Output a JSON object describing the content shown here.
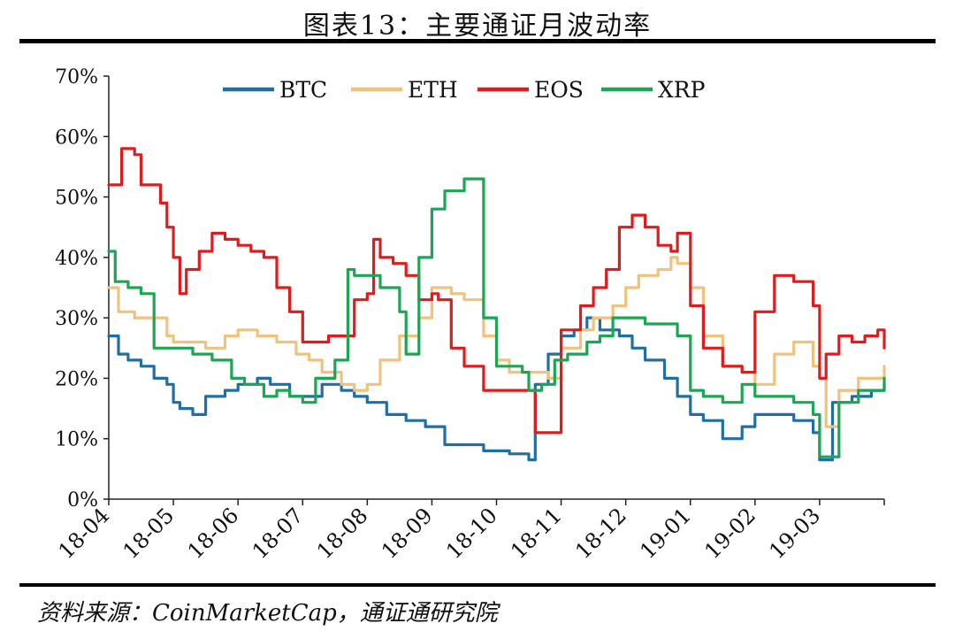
{
  "figure": {
    "title": "图表13：主要通证月波动率",
    "source": "资料来源：CoinMarketCap，通证通研究院"
  },
  "chart_data": {
    "type": "line",
    "title": "图表13：主要通证月波动率",
    "xlabel": "",
    "ylabel": "",
    "x_ticks": [
      "18-04",
      "18-05",
      "18-06",
      "18-07",
      "18-08",
      "18-09",
      "18-10",
      "18-11",
      "18-12",
      "19-01",
      "19-02",
      "19-03"
    ],
    "x_range_months": [
      0,
      12
    ],
    "ylim": [
      0,
      70
    ],
    "y_ticks": [
      0,
      10,
      20,
      30,
      40,
      50,
      60,
      70
    ],
    "y_tick_labels": [
      "0%",
      "10%",
      "20%",
      "30%",
      "40%",
      "50%",
      "60%",
      "70%"
    ],
    "grid": false,
    "legend_position": "top",
    "colors": {
      "BTC": "#1f6fa6",
      "ETH": "#f0c27b",
      "EOS": "#e11b1b",
      "XRP": "#1aa652"
    },
    "series": [
      {
        "name": "BTC",
        "x": [
          0,
          0.15,
          0.3,
          0.5,
          0.7,
          0.9,
          1.0,
          1.1,
          1.3,
          1.5,
          1.8,
          2.0,
          2.3,
          2.5,
          2.8,
          3.0,
          3.3,
          3.6,
          3.8,
          4.0,
          4.3,
          4.6,
          4.9,
          5.2,
          5.5,
          5.8,
          6.0,
          6.2,
          6.5,
          6.6,
          6.8,
          7.0,
          7.2,
          7.4,
          7.6,
          7.9,
          8.1,
          8.3,
          8.6,
          8.8,
          9.0,
          9.2,
          9.5,
          9.8,
          10.0,
          10.3,
          10.6,
          10.9,
          11.0,
          11.2,
          11.5,
          11.8,
          12.0
        ],
        "values": [
          27,
          24,
          23,
          22,
          20,
          19,
          16,
          15,
          14,
          17,
          18,
          19,
          20,
          19,
          17,
          17,
          19,
          18,
          17,
          16,
          14,
          13,
          12,
          9,
          9,
          8,
          8,
          7.5,
          6.5,
          19,
          24,
          27,
          28,
          30,
          28,
          27,
          25,
          23,
          20,
          17,
          14,
          13,
          10,
          12,
          14,
          14,
          13,
          11,
          6.5,
          16,
          17,
          18,
          19
        ]
      },
      {
        "name": "ETH",
        "x": [
          0,
          0.15,
          0.4,
          0.7,
          0.9,
          1.0,
          1.2,
          1.5,
          1.8,
          2.0,
          2.3,
          2.6,
          2.9,
          3.1,
          3.3,
          3.6,
          3.8,
          4.0,
          4.2,
          4.5,
          4.8,
          5.0,
          5.1,
          5.3,
          5.5,
          5.8,
          6.0,
          6.2,
          6.4,
          6.6,
          6.8,
          7.0,
          7.3,
          7.5,
          7.8,
          8.0,
          8.2,
          8.5,
          8.7,
          8.8,
          9.0,
          9.2,
          9.5,
          9.8,
          10.0,
          10.3,
          10.6,
          10.9,
          11.0,
          11.1,
          11.3,
          11.6,
          11.9,
          12.0
        ],
        "values": [
          35,
          31,
          30,
          30,
          27,
          26,
          26,
          25,
          27,
          28,
          27,
          26,
          24,
          23,
          21,
          19,
          18,
          19,
          23,
          27,
          30,
          35,
          35,
          34,
          33,
          27,
          23,
          21,
          21,
          21,
          20,
          25,
          28,
          30,
          32,
          35,
          37,
          38,
          40,
          39,
          35,
          27,
          22,
          21,
          19,
          24,
          26,
          22,
          20,
          12,
          18,
          20,
          20,
          22
        ]
      },
      {
        "name": "EOS",
        "x": [
          0,
          0.1,
          0.2,
          0.3,
          0.4,
          0.5,
          0.6,
          0.8,
          0.9,
          1.0,
          1.1,
          1.2,
          1.4,
          1.6,
          1.8,
          2.0,
          2.2,
          2.4,
          2.6,
          2.8,
          3.0,
          3.2,
          3.4,
          3.6,
          3.8,
          4.0,
          4.1,
          4.2,
          4.4,
          4.6,
          4.8,
          5.0,
          5.1,
          5.3,
          5.5,
          5.8,
          6.0,
          6.2,
          6.5,
          6.6,
          6.8,
          7.0,
          7.3,
          7.5,
          7.7,
          7.9,
          8.1,
          8.3,
          8.5,
          8.7,
          8.8,
          9.0,
          9.2,
          9.5,
          9.8,
          10.0,
          10.3,
          10.6,
          10.9,
          11.0,
          11.1,
          11.3,
          11.5,
          11.7,
          11.9,
          12.0
        ],
        "values": [
          52,
          52,
          58,
          58,
          57,
          52,
          52,
          49,
          45,
          40,
          34,
          38,
          41,
          44,
          43,
          42,
          41,
          40,
          35,
          31,
          26,
          26,
          27,
          27,
          33,
          34,
          43,
          40,
          39,
          37,
          33,
          34,
          33,
          25,
          22,
          18,
          18,
          18,
          18,
          11,
          11,
          28,
          32,
          35,
          38,
          45,
          47,
          45,
          42,
          41,
          44,
          32,
          25,
          22,
          21,
          31,
          37,
          36,
          32,
          20,
          24,
          27,
          26,
          27,
          28,
          25
        ]
      },
      {
        "name": "XRP",
        "x": [
          0,
          0.1,
          0.3,
          0.5,
          0.7,
          0.9,
          1.0,
          1.1,
          1.3,
          1.6,
          1.9,
          2.1,
          2.4,
          2.6,
          2.8,
          3.0,
          3.2,
          3.5,
          3.7,
          3.8,
          4.0,
          4.2,
          4.5,
          4.6,
          4.8,
          5.0,
          5.2,
          5.5,
          5.6,
          5.8,
          6.0,
          6.2,
          6.4,
          6.5,
          6.7,
          6.9,
          7.1,
          7.4,
          7.6,
          7.8,
          8.0,
          8.3,
          8.5,
          8.8,
          9.0,
          9.2,
          9.5,
          9.8,
          10.0,
          10.3,
          10.6,
          10.9,
          11.0,
          11.1,
          11.3,
          11.6,
          11.9,
          12.0
        ],
        "values": [
          41,
          36,
          35,
          34,
          25,
          25,
          25,
          25,
          24,
          23,
          20,
          19,
          17,
          18,
          17,
          16,
          20,
          23,
          38,
          37,
          37,
          35,
          31,
          24,
          40,
          48,
          51,
          53,
          53,
          30,
          22,
          22,
          21,
          18,
          19,
          23,
          24,
          26,
          27,
          30,
          30,
          29,
          29,
          27,
          18,
          17,
          16,
          19,
          17,
          17,
          16,
          14,
          7,
          7,
          16,
          18,
          18,
          20
        ]
      }
    ]
  }
}
